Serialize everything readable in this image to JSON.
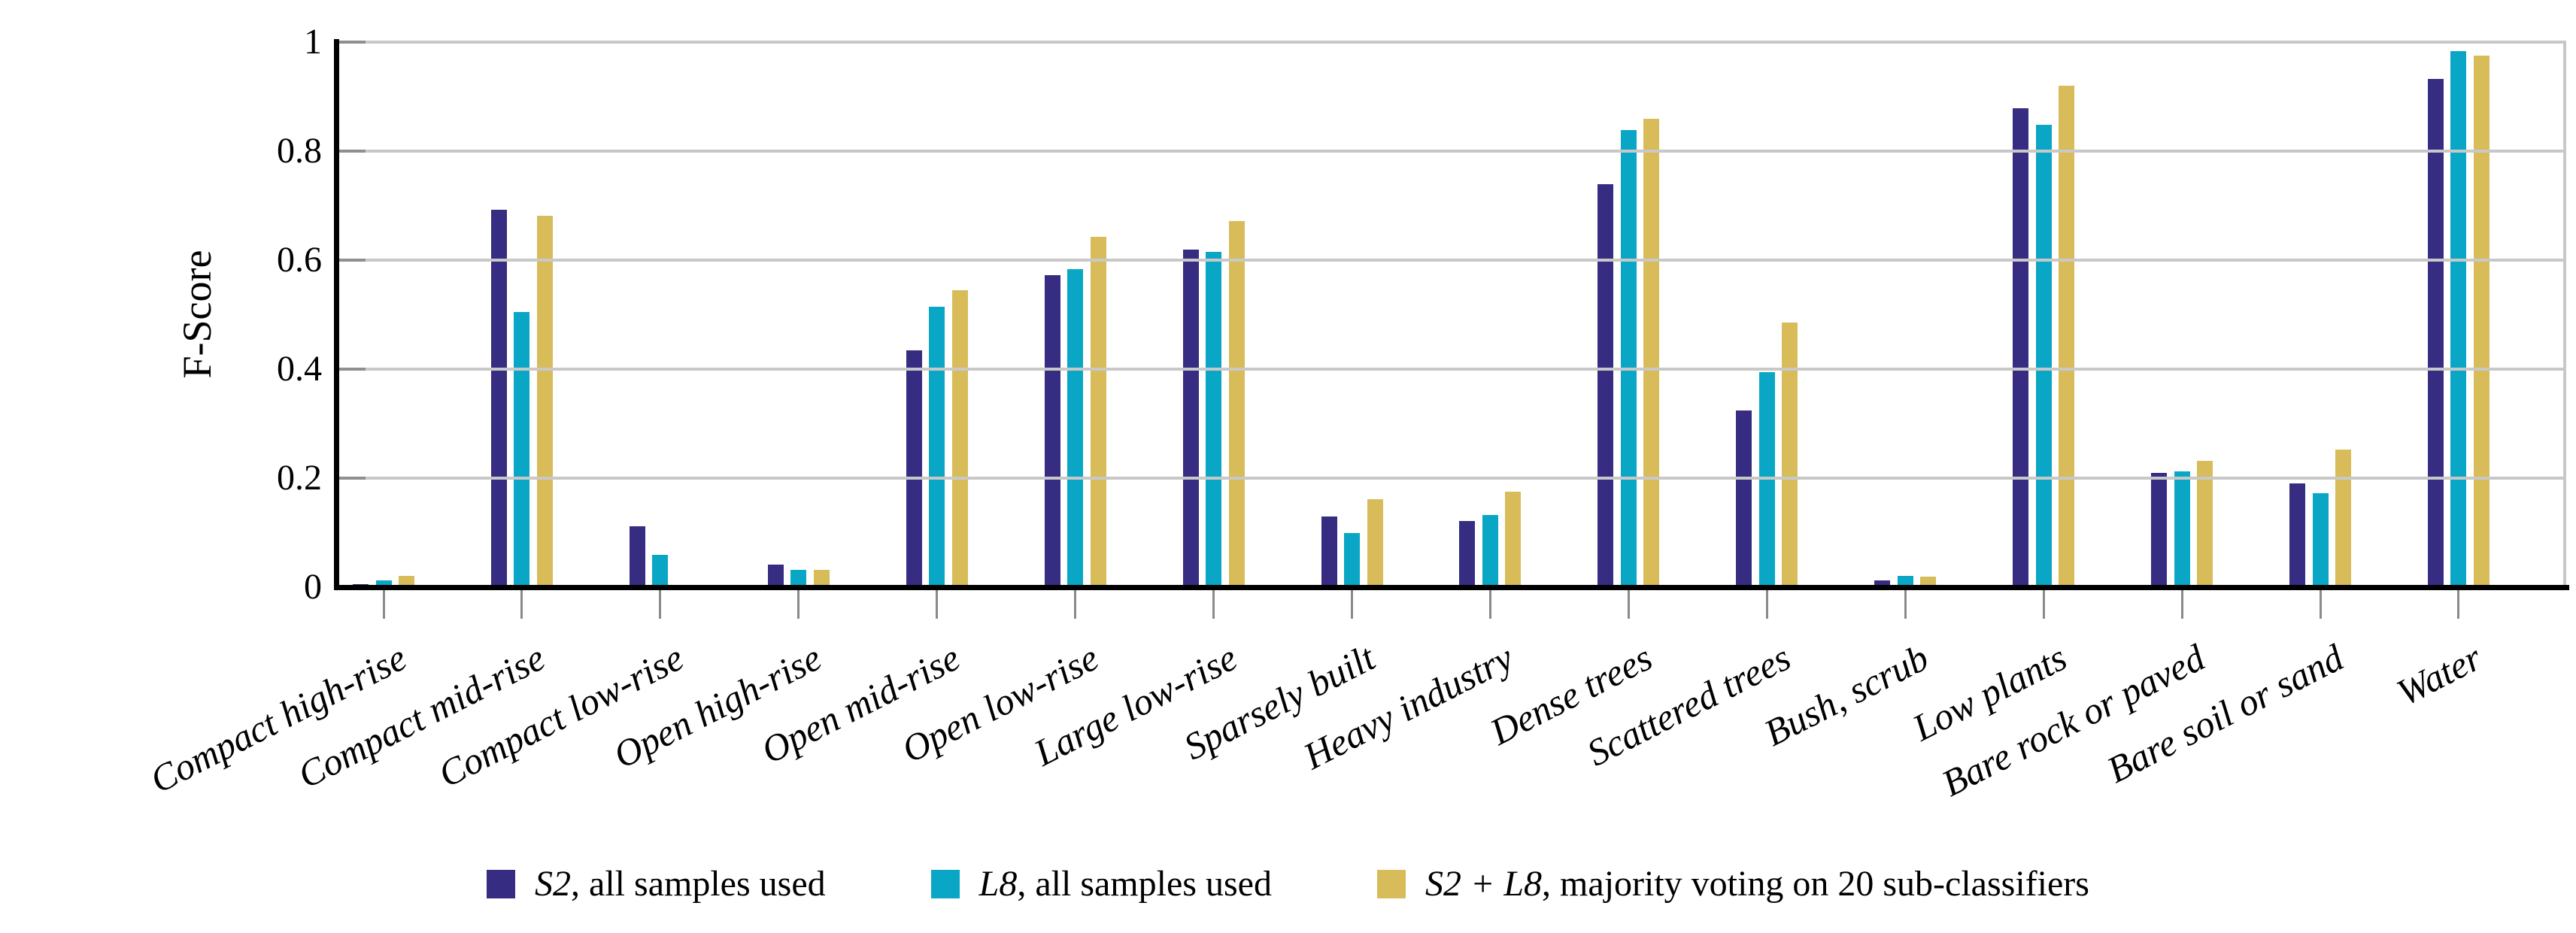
{
  "chart_data": {
    "type": "bar",
    "title": "",
    "xlabel": "",
    "ylabel": "F-Score",
    "ylim": [
      0,
      1
    ],
    "yticks": [
      0,
      0.2,
      0.4,
      0.6,
      0.8,
      1
    ],
    "ytick_labels": [
      "0",
      "0.2",
      "0.4",
      "0.6",
      "0.8",
      "1"
    ],
    "grid": "horizontal-only",
    "gridline_color": "#c8c8c8",
    "axis_color": "#000000",
    "legend_position": "bottom-center",
    "categories": [
      "Compact high-rise",
      "Compact mid-rise",
      "Compact low-rise",
      "Open high-rise",
      "Open mid-rise",
      "Open low-rise",
      "Large low-rise",
      "Sparsely built",
      "Heavy industry",
      "Dense trees",
      "Scattered trees",
      "Bush, scrub",
      "Low plants",
      "Bare rock or paved",
      "Bare soil or sand",
      "Water"
    ],
    "series": [
      {
        "name": "S2, all samples used",
        "legend_italic_part": "S2",
        "legend_rest_part": ", all samples used",
        "color": "#362C82",
        "values": [
          0.005,
          0.693,
          0.112,
          0.041,
          0.435,
          0.573,
          0.62,
          0.13,
          0.121,
          0.739,
          0.324,
          0.013,
          0.878,
          0.21,
          0.191,
          0.932
        ]
      },
      {
        "name": "L8, all samples used",
        "legend_italic_part": "L8",
        "legend_rest_part": ", all samples used",
        "color": "#0AA6C5",
        "values": [
          0.013,
          0.505,
          0.06,
          0.032,
          0.515,
          0.584,
          0.615,
          0.1,
          0.133,
          0.839,
          0.394,
          0.021,
          0.848,
          0.212,
          0.173,
          0.983
        ]
      },
      {
        "name": "S2 + L8, majority voting on 20 sub-classifiers",
        "legend_italic_part": "S2 + L8",
        "legend_rest_part": ", majority voting on 20 sub-classifiers",
        "color": "#D8BC5A",
        "values": [
          0.021,
          0.682,
          0.004,
          0.032,
          0.545,
          0.643,
          0.672,
          0.162,
          0.175,
          0.859,
          0.485,
          0.02,
          0.92,
          0.232,
          0.252,
          0.975
        ]
      }
    ]
  }
}
